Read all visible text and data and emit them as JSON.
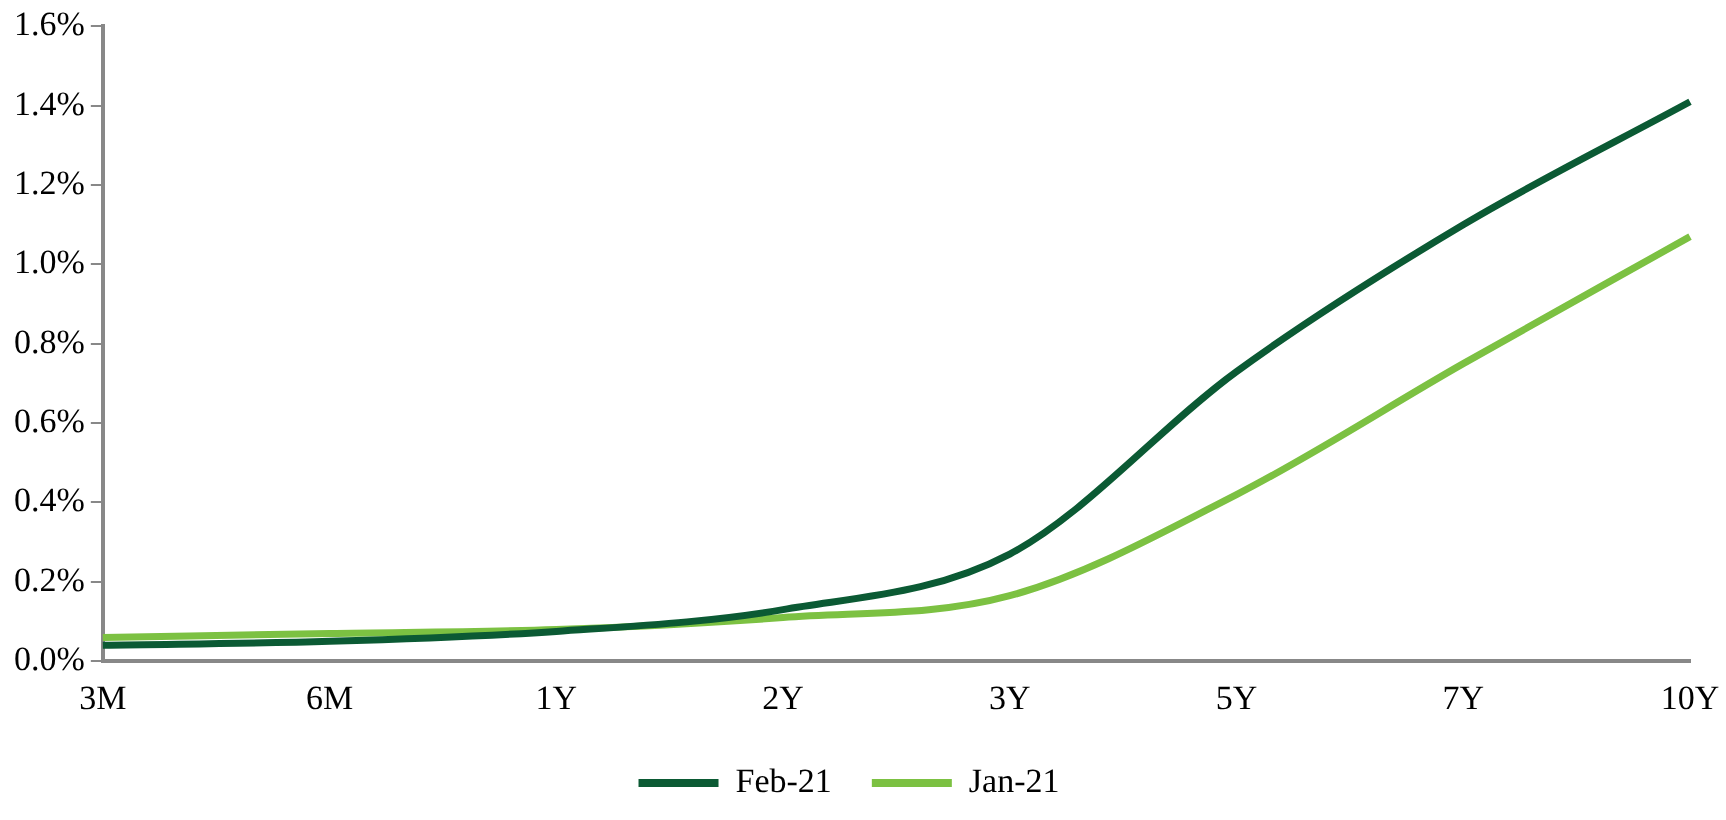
{
  "chart_data": {
    "type": "line",
    "categories": [
      "3M",
      "6M",
      "1Y",
      "2Y",
      "3Y",
      "5Y",
      "7Y",
      "10Y"
    ],
    "series": [
      {
        "name": "Feb-21",
        "color": "#0b5a34",
        "values": [
          0.04,
          0.05,
          0.075,
          0.13,
          0.27,
          0.73,
          1.1,
          1.41
        ]
      },
      {
        "name": "Jan-21",
        "color": "#7cc142",
        "values": [
          0.06,
          0.07,
          0.08,
          0.11,
          0.165,
          0.42,
          0.75,
          1.07
        ]
      }
    ],
    "ylim": [
      0,
      1.6
    ],
    "yticks": [
      {
        "value": 0,
        "label": "0.0%"
      },
      {
        "value": 0.2,
        "label": "0.2%"
      },
      {
        "value": 0.4,
        "label": "0.4%"
      },
      {
        "value": 0.6,
        "label": "0.6%"
      },
      {
        "value": 0.8,
        "label": "0.8%"
      },
      {
        "value": 1,
        "label": "1.0%"
      },
      {
        "value": 1.2,
        "label": "1.2%"
      },
      {
        "value": 1.4,
        "label": "1.4%"
      },
      {
        "value": 1.6,
        "label": "1.6%"
      }
    ],
    "legend": "bottom",
    "grid": false,
    "marker": "none",
    "line_style": "solid"
  }
}
